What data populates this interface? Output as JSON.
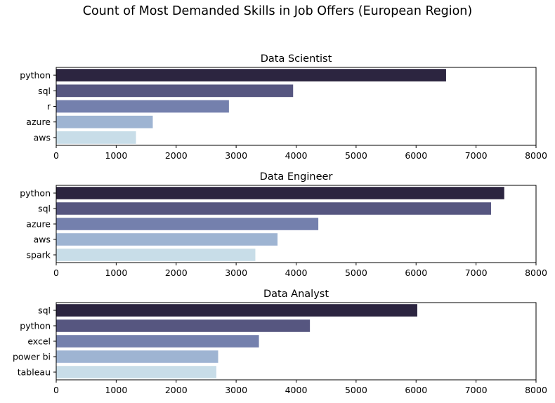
{
  "figure_title": "Count of Most Demanded Skills in Job Offers (European Region)",
  "palette": [
    "#2c2540",
    "#565680",
    "#7480ad",
    "#9eb4d2",
    "#c8dde8"
  ],
  "chart_data": [
    {
      "type": "bar",
      "orientation": "horizontal",
      "title": "Data Scientist",
      "categories": [
        "python",
        "sql",
        "r",
        "azure",
        "aws"
      ],
      "values": [
        6500,
        3950,
        2880,
        1610,
        1330
      ],
      "xlabel": "",
      "ylabel": "",
      "xlim": [
        0,
        8000
      ],
      "xticks": [
        0,
        1000,
        2000,
        3000,
        4000,
        5000,
        6000,
        7000,
        8000
      ],
      "grid": false
    },
    {
      "type": "bar",
      "orientation": "horizontal",
      "title": "Data Engineer",
      "categories": [
        "python",
        "sql",
        "azure",
        "aws",
        "spark"
      ],
      "values": [
        7470,
        7250,
        4370,
        3690,
        3320
      ],
      "xlabel": "",
      "ylabel": "",
      "xlim": [
        0,
        8000
      ],
      "xticks": [
        0,
        1000,
        2000,
        3000,
        4000,
        5000,
        6000,
        7000,
        8000
      ],
      "grid": false
    },
    {
      "type": "bar",
      "orientation": "horizontal",
      "title": "Data Analyst",
      "categories": [
        "sql",
        "python",
        "excel",
        "power bi",
        "tableau"
      ],
      "values": [
        6020,
        4230,
        3380,
        2700,
        2670
      ],
      "xlabel": "",
      "ylabel": "",
      "xlim": [
        0,
        8000
      ],
      "xticks": [
        0,
        1000,
        2000,
        3000,
        4000,
        5000,
        6000,
        7000,
        8000
      ],
      "grid": false
    }
  ]
}
